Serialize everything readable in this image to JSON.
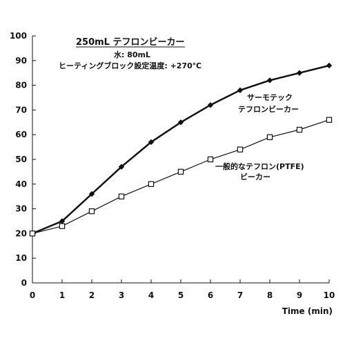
{
  "chart_data": {
    "type": "line",
    "title": "250mL テフロンビーカー",
    "subtitle_lines": [
      "水: 80mL",
      "ヒーティングブロック設定温度: +270℃"
    ],
    "xlabel": "Time (min)",
    "ylabel": "",
    "xlim": [
      0,
      10
    ],
    "ylim": [
      0,
      100
    ],
    "xticks": [
      "0",
      "1",
      "2",
      "3",
      "4",
      "5",
      "6",
      "7",
      "8",
      "9",
      "10"
    ],
    "yticks": [
      "0",
      "10",
      "20",
      "30",
      "40",
      "50",
      "60",
      "70",
      "80",
      "90",
      "100"
    ],
    "grid": false,
    "series": [
      {
        "name_lines": [
          "サーモテック",
          "テフロンビーカー"
        ],
        "marker": "filled-diamond",
        "color": "#111111",
        "x": [
          0,
          1,
          2,
          3,
          4,
          5,
          6,
          7,
          8,
          9,
          10
        ],
        "values": [
          20,
          25,
          36,
          47,
          57,
          65,
          72,
          78,
          82,
          85,
          88
        ]
      },
      {
        "name_lines": [
          "一般的なテフロン(PTFE)",
          "ビーカー"
        ],
        "marker": "open-square",
        "color": "#111111",
        "x": [
          0,
          1,
          2,
          3,
          4,
          5,
          6,
          7,
          8,
          9,
          10
        ],
        "values": [
          20,
          23,
          29,
          35,
          40,
          45,
          50,
          54,
          59,
          62,
          66
        ]
      }
    ]
  }
}
